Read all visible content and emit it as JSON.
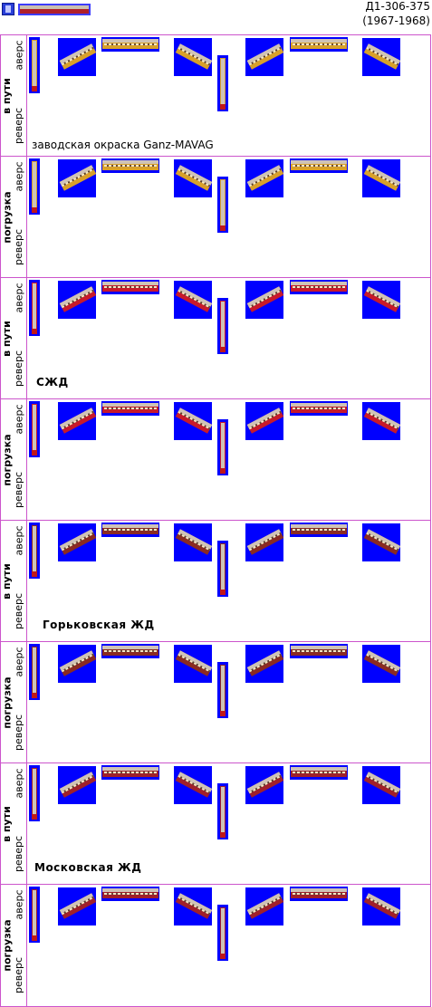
{
  "header": {
    "title_line1": "Д1-306-375",
    "title_line2": "(1967-1968)"
  },
  "labels": {
    "obverse": "аверс",
    "reverse": "реверс",
    "on_route": "в пути",
    "loading": "погрузка"
  },
  "sections": [
    {
      "state": "в пути",
      "note": "заводская окраска Ganz-MAVAG",
      "color": "#d8a02a"
    },
    {
      "state": "погрузка",
      "note": "",
      "color": "#d8a02a"
    },
    {
      "state": "в пути",
      "note": "СЖД",
      "color": "#c81a2a"
    },
    {
      "state": "погрузка",
      "note": "",
      "color": "#c81a2a"
    },
    {
      "state": "в пути",
      "note": "Горьковская ЖД",
      "color": "#8a2a22"
    },
    {
      "state": "погрузка",
      "note": "",
      "color": "#8a2a22"
    },
    {
      "state": "в пути",
      "note": "Московская ЖД",
      "color": "#a0202a"
    },
    {
      "state": "погрузка",
      "note": "",
      "color": "#a0202a"
    }
  ],
  "colors": {
    "grid_line": "#cc55cc",
    "sprite_bg": "#0000ff"
  }
}
